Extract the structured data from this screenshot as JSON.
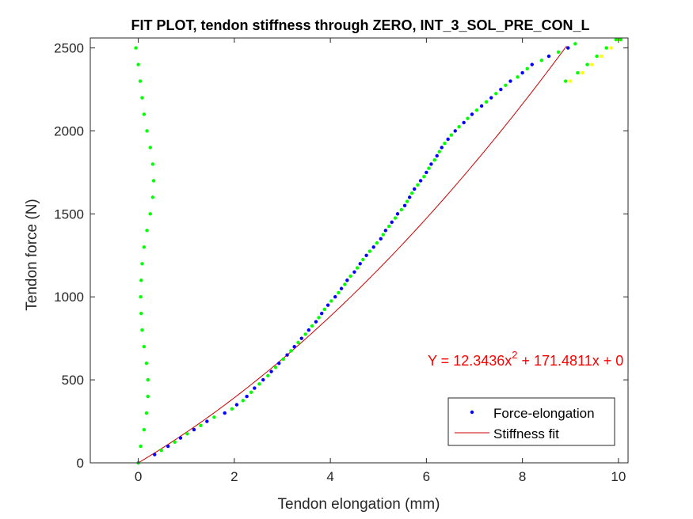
{
  "chart_data": {
    "type": "scatter",
    "title": "FIT PLOT, tendon stiffness through ZERO, INT_3_SOL_PRE_CON_L",
    "xlabel": "Tendon elongation (mm)",
    "ylabel": "Tendon force (N)",
    "xlim": [
      -1.0,
      10.2
    ],
    "ylim": [
      0,
      2560
    ],
    "xticks": [
      0,
      2,
      4,
      6,
      8,
      10
    ],
    "yticks": [
      0,
      500,
      1000,
      1500,
      2000,
      2500
    ],
    "xtick_labels": [
      "0",
      "2",
      "4",
      "6",
      "8",
      "10"
    ],
    "ytick_labels": [
      "0",
      "500",
      "1000",
      "1500",
      "2000",
      "2500"
    ],
    "grid": false,
    "legend_position": "bottom-right",
    "equation": {
      "prefix": "Y = 12.3436x",
      "superscript": "2",
      "suffix": " + 171.4811x + 0",
      "color": "#ff0000"
    },
    "series": [
      {
        "name": "Force-elongation",
        "kind": "points",
        "color": "#0000ff",
        "x": [
          0,
          0.34,
          0.62,
          0.88,
          1.16,
          1.43,
          1.8,
          2.05,
          2.26,
          2.42,
          2.6,
          2.77,
          2.93,
          3.1,
          3.25,
          3.4,
          3.55,
          3.7,
          3.82,
          3.95,
          4.1,
          4.23,
          4.35,
          4.5,
          4.62,
          4.75,
          4.9,
          5.05,
          5.15,
          5.28,
          5.4,
          5.55,
          5.65,
          5.75,
          5.88,
          6.0,
          6.1,
          6.22,
          6.32,
          6.45,
          6.6,
          6.78,
          6.95,
          7.15,
          7.35,
          7.55,
          7.75,
          8.0,
          8.2,
          8.55,
          8.95
        ],
        "y": [
          0,
          50,
          100,
          150,
          200,
          250,
          300,
          350,
          400,
          450,
          500,
          550,
          600,
          650,
          700,
          750,
          800,
          850,
          900,
          950,
          1000,
          1050,
          1100,
          1150,
          1200,
          1250,
          1300,
          1350,
          1400,
          1450,
          1500,
          1550,
          1600,
          1650,
          1700,
          1750,
          1800,
          1850,
          1900,
          1950,
          2000,
          2050,
          2100,
          2150,
          2200,
          2250,
          2300,
          2350,
          2400,
          2450,
          2500
        ]
      },
      {
        "name": "",
        "kind": "points",
        "color": "#00ff00",
        "x": [
          0.0,
          0.05,
          0.12,
          0.17,
          0.2,
          0.2,
          0.17,
          0.12,
          0.08,
          0.06,
          0.05,
          0.06,
          0.08,
          0.12,
          0.18,
          0.25,
          0.3,
          0.32,
          0.3,
          0.25,
          0.18,
          0.12,
          0.08,
          0.04,
          0.0,
          -0.05
        ],
        "y": [
          0,
          100,
          200,
          300,
          400,
          500,
          600,
          700,
          800,
          900,
          1000,
          1100,
          1200,
          1300,
          1400,
          1500,
          1600,
          1700,
          1800,
          1900,
          2000,
          2100,
          2200,
          2300,
          2400,
          2500
        ]
      },
      {
        "name": "",
        "kind": "points",
        "color": "#00ff00",
        "x": [
          0.48,
          0.76,
          1.02,
          1.3,
          1.58,
          1.95,
          2.18,
          2.35,
          2.52,
          2.7,
          2.86,
          3.02,
          3.18,
          3.33,
          3.48,
          3.62,
          3.76,
          3.88,
          4.02,
          4.17,
          4.3,
          4.42,
          4.56,
          4.68,
          4.82,
          4.97,
          5.1,
          5.22,
          5.35,
          5.48,
          5.6,
          5.7,
          5.82,
          5.95,
          6.05,
          6.17,
          6.27,
          6.38,
          6.52,
          6.68,
          6.86,
          7.05,
          7.25,
          7.45,
          7.65,
          7.9,
          8.1,
          8.4,
          8.75,
          9.1
        ],
        "y": [
          75,
          125,
          175,
          225,
          275,
          325,
          375,
          425,
          475,
          525,
          575,
          625,
          675,
          725,
          775,
          825,
          875,
          925,
          975,
          1025,
          1075,
          1125,
          1175,
          1225,
          1275,
          1325,
          1375,
          1425,
          1475,
          1525,
          1575,
          1625,
          1675,
          1725,
          1775,
          1825,
          1875,
          1925,
          1975,
          2025,
          2075,
          2125,
          2175,
          2225,
          2275,
          2325,
          2375,
          2425,
          2475,
          2525
        ]
      },
      {
        "name": "",
        "kind": "points",
        "color": "#ffff00",
        "x": [
          9.0,
          9.25,
          9.45,
          9.65,
          9.85,
          10.0
        ],
        "y": [
          2300,
          2350,
          2400,
          2450,
          2500,
          2550
        ]
      },
      {
        "name": "",
        "kind": "points",
        "color": "#00ff00",
        "x": [
          8.9,
          9.15,
          9.35,
          9.55,
          9.75,
          9.95,
          10.05
        ],
        "y": [
          2300,
          2350,
          2400,
          2450,
          2500,
          2550,
          2550
        ]
      },
      {
        "name": "Stiffness fit",
        "kind": "line",
        "color": "#cc0000",
        "coef_a": 12.3436,
        "coef_b": 171.4811,
        "coef_c": 0,
        "x_start": 0,
        "x_end": 8.92
      }
    ]
  }
}
